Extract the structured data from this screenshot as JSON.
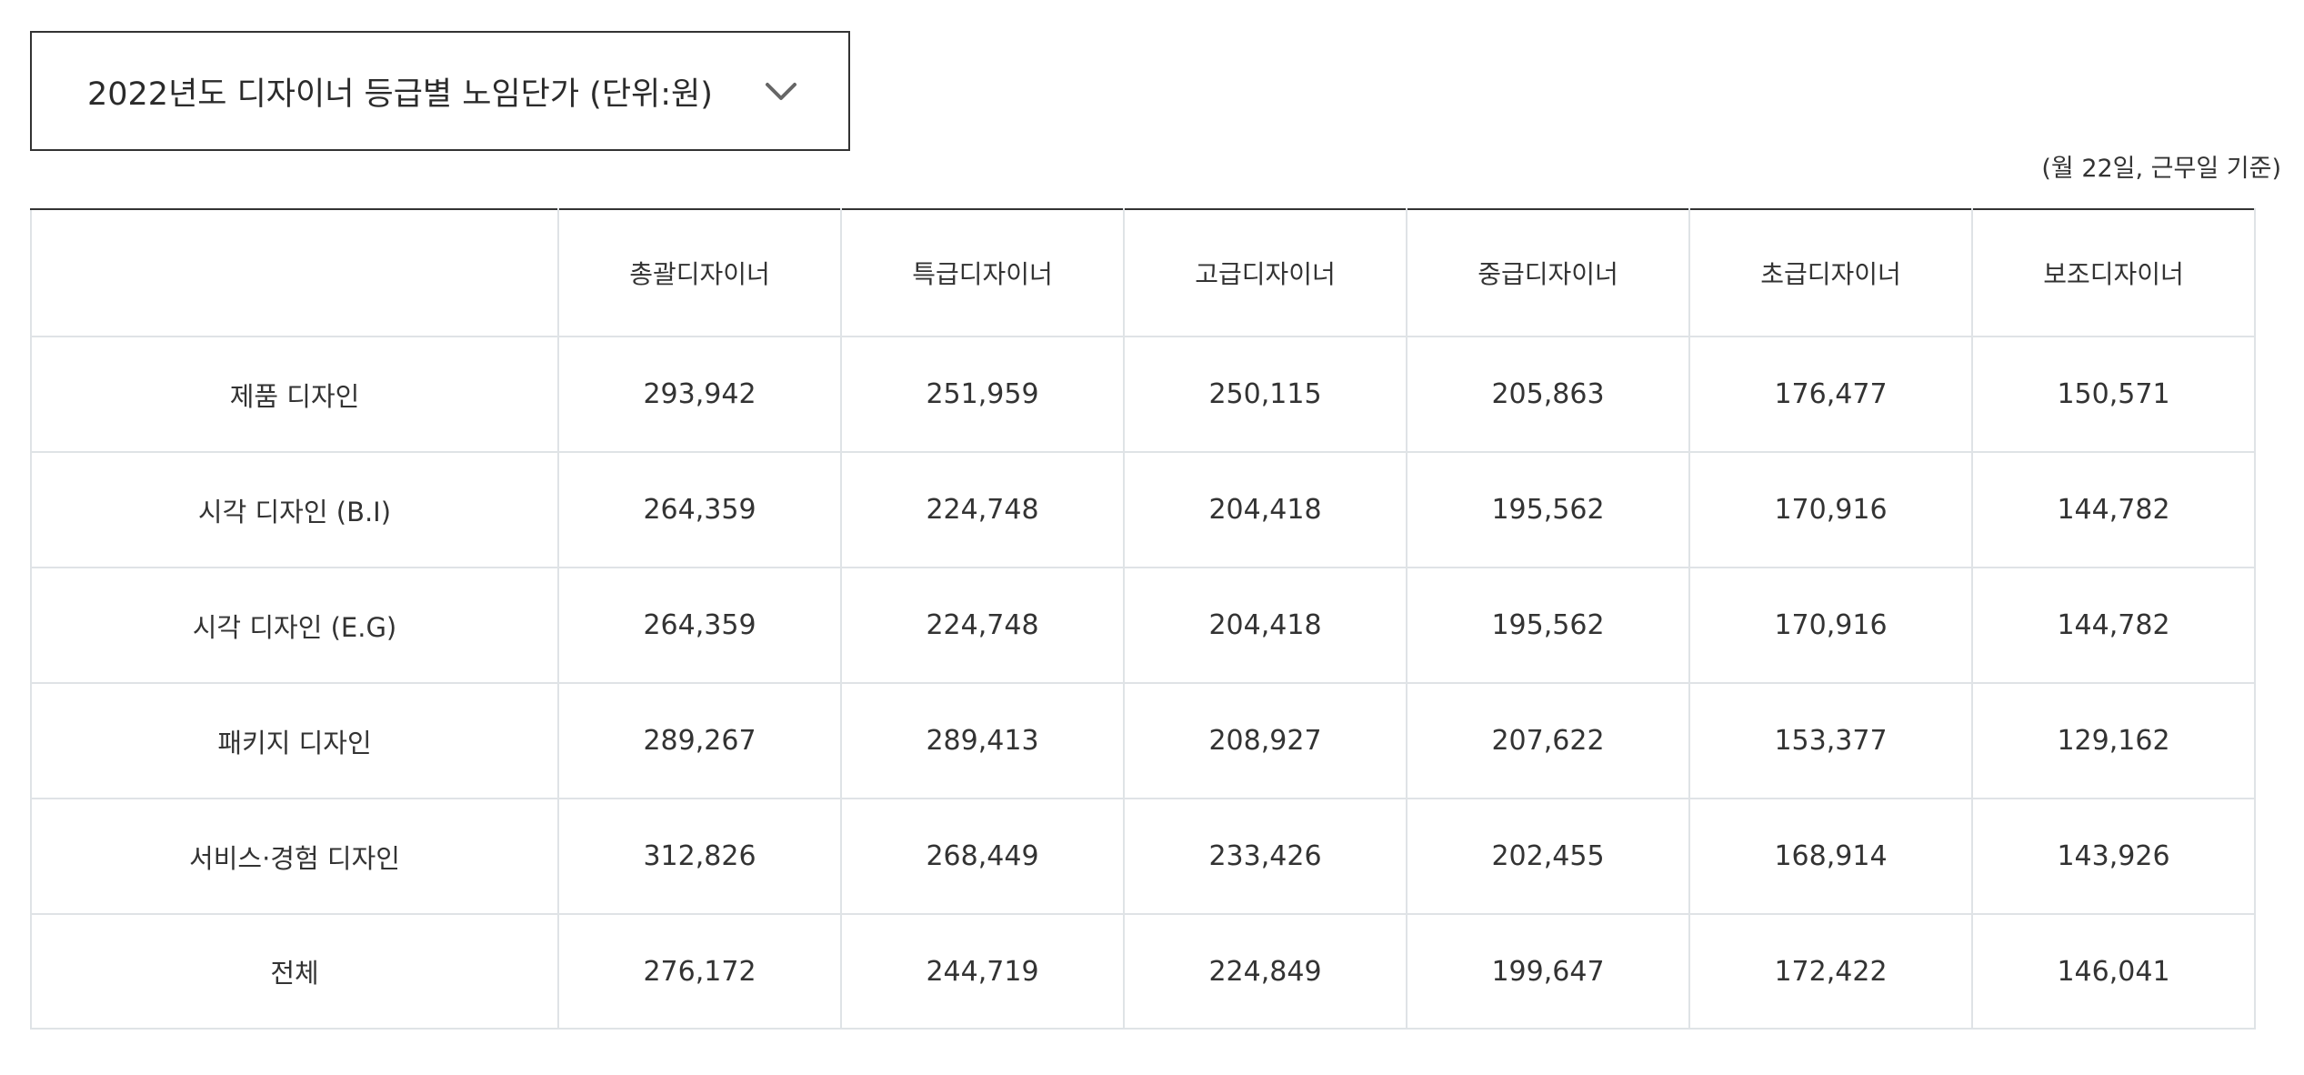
{
  "selector": {
    "label": "2022년도 디자이너 등급별 노임단가 (단위:원)",
    "arrow_icon": "chevron-down-icon"
  },
  "note": "(월 22일, 근무일 기준)",
  "table": {
    "corner": "",
    "columns": [
      "총괄디자이너",
      "특급디자이너",
      "고급디자이너",
      "중급디자이너",
      "초급디자이너",
      "보조디자이너"
    ],
    "rows": [
      {
        "label": "제품 디자인",
        "values": [
          "293,942",
          "251,959",
          "250,115",
          "205,863",
          "176,477",
          "150,571"
        ]
      },
      {
        "label": "시각 디자인 (B.I)",
        "values": [
          "264,359",
          "224,748",
          "204,418",
          "195,562",
          "170,916",
          "144,782"
        ]
      },
      {
        "label": "시각 디자인 (E.G)",
        "values": [
          "264,359",
          "224,748",
          "204,418",
          "195,562",
          "170,916",
          "144,782"
        ]
      },
      {
        "label": "패키지 디자인",
        "values": [
          "289,267",
          "289,413",
          "208,927",
          "207,622",
          "153,377",
          "129,162"
        ]
      },
      {
        "label": "서비스·경험 디자인",
        "values": [
          "312,826",
          "268,449",
          "233,426",
          "202,455",
          "168,914",
          "143,926"
        ]
      }
    ],
    "total": {
      "label": "전체",
      "values": [
        "276,172",
        "244,719",
        "224,849",
        "199,647",
        "172,422",
        "146,041"
      ]
    }
  },
  "colors": {
    "border_strong": "#333333",
    "border_light": "#dfe3e6",
    "text": "#333333"
  }
}
